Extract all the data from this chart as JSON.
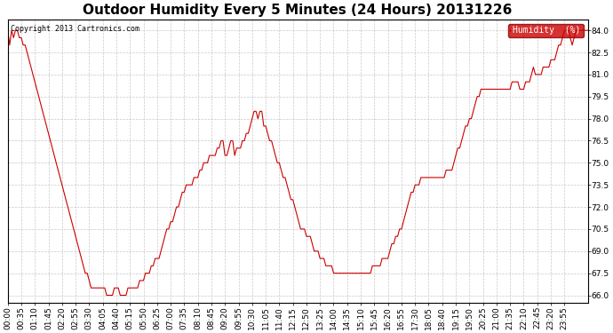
{
  "title": "Outdoor Humidity Every 5 Minutes (24 Hours) 20131226",
  "copyright_text": "Copyright 2013 Cartronics.com",
  "legend_label": "Humidity  (%)",
  "ylim": [
    65.5,
    84.75
  ],
  "yticks": [
    66.0,
    67.5,
    69.0,
    70.5,
    72.0,
    73.5,
    75.0,
    76.5,
    78.0,
    79.5,
    81.0,
    82.5,
    84.0
  ],
  "line_color": "#cc0000",
  "legend_bg": "#cc0000",
  "legend_text_color": "#ffffff",
  "background_color": "#ffffff",
  "grid_color": "#bbbbbb",
  "title_fontsize": 11,
  "tick_fontsize": 6.5,
  "humidity_values": [
    84.0,
    83.0,
    84.0,
    83.5,
    84.0,
    84.0,
    83.5,
    83.5,
    83.0,
    83.0,
    82.5,
    82.0,
    81.5,
    81.0,
    80.5,
    80.0,
    79.5,
    79.0,
    78.5,
    78.0,
    77.5,
    77.0,
    76.5,
    76.0,
    75.5,
    75.0,
    74.5,
    74.0,
    73.5,
    73.0,
    72.5,
    72.0,
    71.5,
    71.0,
    70.5,
    70.0,
    69.5,
    69.0,
    68.5,
    68.0,
    67.5,
    67.5,
    67.0,
    66.5,
    66.5,
    66.5,
    66.5,
    66.5,
    66.5,
    66.5,
    66.5,
    66.0,
    66.0,
    66.0,
    66.0,
    66.5,
    66.5,
    66.5,
    66.0,
    66.0,
    66.0,
    66.0,
    66.5,
    66.5,
    66.5,
    66.5,
    66.5,
    66.5,
    67.0,
    67.0,
    67.0,
    67.5,
    67.5,
    67.5,
    68.0,
    68.0,
    68.5,
    68.5,
    68.5,
    69.0,
    69.5,
    70.0,
    70.5,
    70.5,
    71.0,
    71.0,
    71.5,
    72.0,
    72.0,
    72.5,
    73.0,
    73.0,
    73.5,
    73.5,
    73.5,
    73.5,
    74.0,
    74.0,
    74.0,
    74.5,
    74.5,
    75.0,
    75.0,
    75.0,
    75.5,
    75.5,
    75.5,
    75.5,
    76.0,
    76.0,
    76.5,
    76.5,
    75.5,
    75.5,
    76.0,
    76.5,
    76.5,
    75.5,
    76.0,
    76.0,
    76.0,
    76.5,
    76.5,
    77.0,
    77.0,
    77.5,
    78.0,
    78.5,
    78.5,
    78.0,
    78.5,
    78.5,
    77.5,
    77.5,
    77.0,
    76.5,
    76.5,
    76.0,
    75.5,
    75.0,
    75.0,
    74.5,
    74.0,
    74.0,
    73.5,
    73.0,
    72.5,
    72.5,
    72.0,
    71.5,
    71.0,
    70.5,
    70.5,
    70.5,
    70.0,
    70.0,
    70.0,
    69.5,
    69.0,
    69.0,
    69.0,
    68.5,
    68.5,
    68.5,
    68.0,
    68.0,
    68.0,
    68.0,
    67.5,
    67.5,
    67.5,
    67.5,
    67.5,
    67.5,
    67.5,
    67.5,
    67.5,
    67.5,
    67.5,
    67.5,
    67.5,
    67.5,
    67.5,
    67.5,
    67.5,
    67.5,
    67.5,
    67.5,
    68.0,
    68.0,
    68.0,
    68.0,
    68.0,
    68.5,
    68.5,
    68.5,
    68.5,
    69.0,
    69.5,
    69.5,
    70.0,
    70.0,
    70.5,
    70.5,
    71.0,
    71.5,
    72.0,
    72.5,
    73.0,
    73.0,
    73.5,
    73.5,
    73.5,
    74.0,
    74.0,
    74.0,
    74.0,
    74.0,
    74.0,
    74.0,
    74.0,
    74.0,
    74.0,
    74.0,
    74.0,
    74.0,
    74.5,
    74.5,
    74.5,
    74.5,
    75.0,
    75.5,
    76.0,
    76.0,
    76.5,
    77.0,
    77.5,
    77.5,
    78.0,
    78.0,
    78.5,
    79.0,
    79.5,
    79.5,
    80.0,
    80.0,
    80.0,
    80.0,
    80.0,
    80.0,
    80.0,
    80.0,
    80.0,
    80.0,
    80.0,
    80.0,
    80.0,
    80.0,
    80.0,
    80.0,
    80.5,
    80.5,
    80.5,
    80.5,
    80.0,
    80.0,
    80.0,
    80.5,
    80.5,
    80.5,
    81.0,
    81.5,
    81.0,
    81.0,
    81.0,
    81.0,
    81.5,
    81.5,
    81.5,
    81.5,
    82.0,
    82.0,
    82.0,
    82.5,
    83.0,
    83.0,
    83.5,
    84.0,
    84.0,
    84.0,
    83.5,
    83.0,
    83.5,
    84.0,
    84.0,
    84.0,
    84.0,
    84.0,
    84.0,
    84.0
  ],
  "xtick_labels": [
    "00:00",
    "00:35",
    "01:10",
    "01:45",
    "02:20",
    "02:55",
    "03:30",
    "04:05",
    "04:40",
    "05:15",
    "05:50",
    "06:25",
    "07:00",
    "07:35",
    "08:10",
    "08:45",
    "09:20",
    "09:55",
    "10:30",
    "11:05",
    "11:40",
    "12:15",
    "12:50",
    "13:25",
    "14:00",
    "14:35",
    "15:10",
    "15:45",
    "16:20",
    "16:55",
    "17:30",
    "18:05",
    "18:40",
    "19:15",
    "19:50",
    "20:25",
    "21:00",
    "21:35",
    "22:10",
    "22:45",
    "23:20",
    "23:55"
  ]
}
